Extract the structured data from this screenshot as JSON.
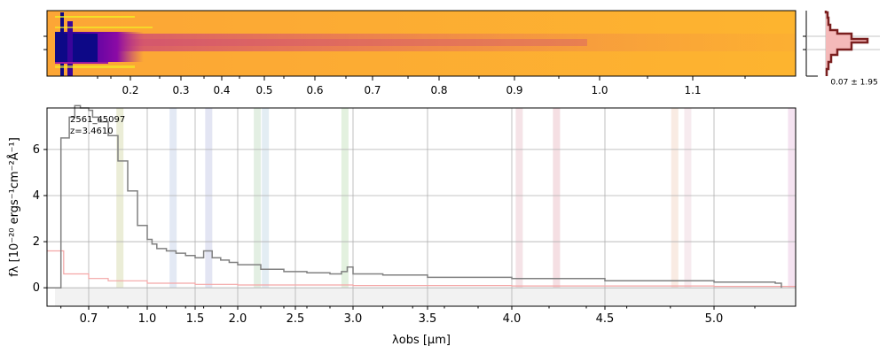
{
  "chart_data": [
    {
      "type": "heatmap",
      "panel": "2d-spectrum",
      "colormap": "plasma",
      "x_tick_labels": [
        "0.2",
        "0.3",
        "0.4",
        "0.5",
        "0.6",
        "0.7",
        "0.8",
        "0.9",
        "1.0",
        "1.1"
      ]
    },
    {
      "type": "histogram",
      "panel": "residual-histogram",
      "annotation": "0.07 ± 1.95",
      "fill_color": "#f4b9b9",
      "line_color": "#7a1f1f"
    },
    {
      "type": "line",
      "panel": "1d-spectrum",
      "object_id": "2561_45097",
      "redshift": "z=3.4610",
      "xlabel": "λobs [μm]",
      "ylabel": "fλ [10⁻²⁰ ergs⁻¹cm⁻²Å⁻¹]",
      "xlim": [
        0.55,
        5.4
      ],
      "ylim": [
        -0.8,
        7.8
      ],
      "x_ticks": [
        "0.7",
        "1.0",
        "1.5",
        "2.0",
        "2.5",
        "3.0",
        "3.5",
        "4.0",
        "4.5",
        "5.0"
      ],
      "y_ticks": [
        "0",
        "2",
        "4",
        "6"
      ],
      "grid": true,
      "series": [
        {
          "color": "#808080",
          "x": [
            0.55,
            0.6,
            0.63,
            0.65,
            0.67,
            0.7,
            0.72,
            0.75,
            0.8,
            0.85,
            0.9,
            0.95,
            1.0,
            1.05,
            1.1,
            1.2,
            1.3,
            1.4,
            1.5,
            1.6,
            1.7,
            1.8,
            1.9,
            2.0,
            2.2,
            2.4,
            2.6,
            2.8,
            2.9,
            2.95,
            3.0,
            3.2,
            3.5,
            4.0,
            4.5,
            5.0,
            5.2,
            5.3,
            5.33
          ],
          "y": [
            0.0,
            6.5,
            7.4,
            7.9,
            7.8,
            7.7,
            7.4,
            7.2,
            6.6,
            5.5,
            4.2,
            2.7,
            2.1,
            1.9,
            1.7,
            1.6,
            1.5,
            1.4,
            1.3,
            1.6,
            1.3,
            1.2,
            1.1,
            1.0,
            0.8,
            0.7,
            0.65,
            0.6,
            0.7,
            0.9,
            0.6,
            0.55,
            0.45,
            0.4,
            0.3,
            0.25,
            0.25,
            0.2,
            0.0
          ]
        },
        {
          "color": "#f4a6a6",
          "x": [
            0.55,
            0.6,
            0.61,
            0.7,
            0.8,
            1.0,
            1.5,
            2.0,
            3.0,
            4.0,
            5.0,
            5.4
          ],
          "y": [
            1.6,
            1.6,
            0.6,
            0.4,
            0.3,
            0.2,
            0.15,
            0.12,
            0.1,
            0.08,
            0.06,
            0.06
          ]
        }
      ],
      "line_bands": [
        {
          "x": 0.86,
          "color": "#d8dcb0"
        },
        {
          "x": 1.27,
          "color": "#c8d4ea"
        },
        {
          "x": 1.66,
          "color": "#c8cce8"
        },
        {
          "x": 2.17,
          "color": "#c8e0c8"
        },
        {
          "x": 2.24,
          "color": "#c8dce8"
        },
        {
          "x": 2.93,
          "color": "#c8e4c0"
        },
        {
          "x": 4.04,
          "color": "#ecc8d0"
        },
        {
          "x": 4.24,
          "color": "#ecc0c8"
        },
        {
          "x": 4.82,
          "color": "#f4d8c8"
        },
        {
          "x": 4.88,
          "color": "#f0d8e0"
        },
        {
          "x": 5.38,
          "color": "#ecc8e4"
        }
      ]
    }
  ]
}
